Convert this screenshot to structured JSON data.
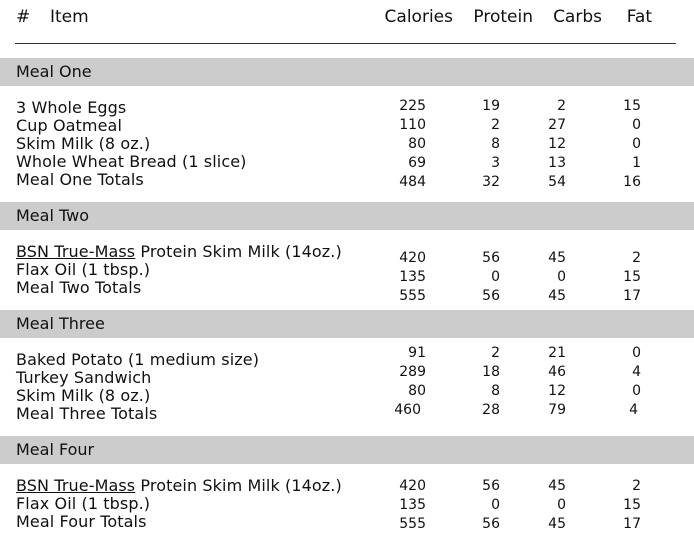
{
  "header": {
    "hash": "#",
    "item": "Item",
    "calories": "Calories",
    "protein": "Protein",
    "carbs": "Carbs",
    "fat": "Fat"
  },
  "meals": [
    {
      "title": "Meal One",
      "items": [
        {
          "name": "3 Whole Eggs",
          "calories": "225",
          "protein": "19",
          "carbs": "2",
          "fat": "15"
        },
        {
          "name": "Cup Oatmeal",
          "calories": "110",
          "protein": "2",
          "carbs": "27",
          "fat": "0"
        },
        {
          "name": "Skim Milk (8 oz.)",
          "calories": "80",
          "protein": "8",
          "carbs": "12",
          "fat": "0"
        },
        {
          "name": "Whole Wheat Bread (1 slice)",
          "calories": "69",
          "protein": "3",
          "carbs": "13",
          "fat": "1"
        },
        {
          "name": "Meal One Totals",
          "calories": "484",
          "protein": "32",
          "carbs": "54",
          "fat": "16"
        }
      ]
    },
    {
      "title": "Meal Two",
      "items": [
        {
          "link": "BSN True-Mass",
          "name": " Protein Skim Milk (14oz.)",
          "calories": "420",
          "protein": "56",
          "carbs": "45",
          "fat": "2"
        },
        {
          "name": "Flax Oil (1 tbsp.)",
          "calories": "135",
          "protein": "0",
          "carbs": "0",
          "fat": "15"
        },
        {
          "name": "Meal Two Totals",
          "calories": "555",
          "protein": "56",
          "carbs": "45",
          "fat": "17"
        }
      ]
    },
    {
      "title": "Meal Three",
      "items": [
        {
          "name": "Baked Potato (1 medium size)",
          "calories": "91",
          "protein": "2",
          "carbs": "21",
          "fat": "0"
        },
        {
          "name": "Turkey Sandwich",
          "calories": "289",
          "protein": "18",
          "carbs": "46",
          "fat": "4"
        },
        {
          "name": "Skim Milk (8 oz.)",
          "calories": "80",
          "protein": "8",
          "carbs": "12",
          "fat": "0"
        },
        {
          "name": "Meal Three Totals",
          "calories": "460",
          "protein": "28",
          "carbs": "79",
          "fat": "4"
        }
      ]
    },
    {
      "title": "Meal Four",
      "items": [
        {
          "link": "BSN True-Mass",
          "name": " Protein Skim Milk (14oz.)",
          "calories": "420",
          "protein": "56",
          "carbs": "45",
          "fat": "2"
        },
        {
          "name": "Flax Oil (1 tbsp.)",
          "calories": "135",
          "protein": "0",
          "carbs": "0",
          "fat": "15"
        },
        {
          "name": "Meal Four Totals",
          "calories": "555",
          "protein": "56",
          "carbs": "45",
          "fat": "17"
        }
      ]
    }
  ]
}
